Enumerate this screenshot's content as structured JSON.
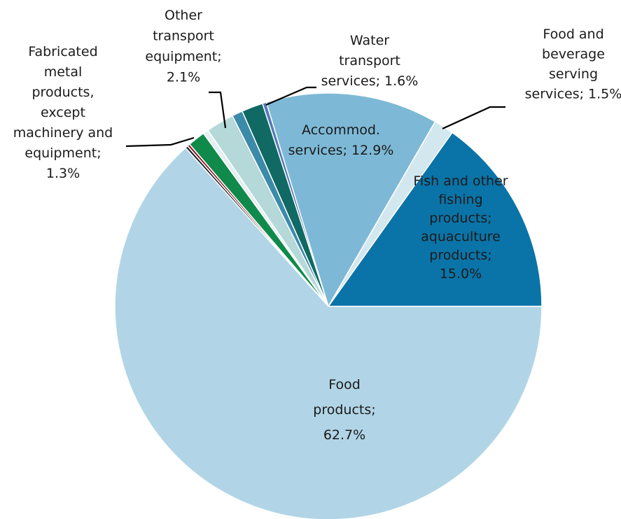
{
  "chart_data": {
    "type": "pie",
    "title": "",
    "start_angle_deg": 0,
    "direction": "counterclockwise",
    "series": [
      {
        "id": "fish",
        "label_lines": [
          "Fish and other",
          "fishing",
          "products;",
          "aquaculture",
          "products;",
          "15.0%"
        ],
        "value": 15.0,
        "color": "#0a74a8"
      },
      {
        "id": "food_beverage",
        "label_lines": [
          "Food and",
          "beverage",
          "serving",
          "services; 1.5%"
        ],
        "value": 1.5,
        "color": "#d3e7ef"
      },
      {
        "id": "accommod",
        "label_lines": [
          "Accommod.",
          "services; 12.9%"
        ],
        "value": 12.9,
        "color": "#7db9d6"
      },
      {
        "id": "small_a",
        "label_lines": [],
        "value": 0.3,
        "color": "#5878b8"
      },
      {
        "id": "water_transport",
        "label_lines": [
          "Water",
          "transport",
          "services; 1.6%"
        ],
        "value": 1.6,
        "color": "#106a63"
      },
      {
        "id": "small_b",
        "label_lines": [],
        "value": 0.8,
        "color": "#3c8aaa"
      },
      {
        "id": "other_transport",
        "label_lines": [
          "Other",
          "transport",
          "equipment;",
          "2.1%"
        ],
        "value": 2.1,
        "color": "#b5d8d8"
      },
      {
        "id": "small_c",
        "label_lines": [],
        "value": 0.4,
        "color": "#e3eef2"
      },
      {
        "id": "fabricated_metal",
        "label_lines": [
          "Fabricated",
          "metal",
          "products,",
          "except",
          "machinery and",
          "equipment;",
          "1.3%"
        ],
        "value": 1.3,
        "color": "#0f8a4a"
      },
      {
        "id": "small_d",
        "label_lines": [],
        "value": 0.2,
        "color": "#8c1f2e"
      },
      {
        "id": "small_e",
        "label_lines": [],
        "value": 0.2,
        "color": "#222222"
      },
      {
        "id": "food_products",
        "label_lines": [
          "Food",
          "products;",
          "62.7%"
        ],
        "value": 62.7,
        "color": "#b1d5e6"
      }
    ]
  }
}
